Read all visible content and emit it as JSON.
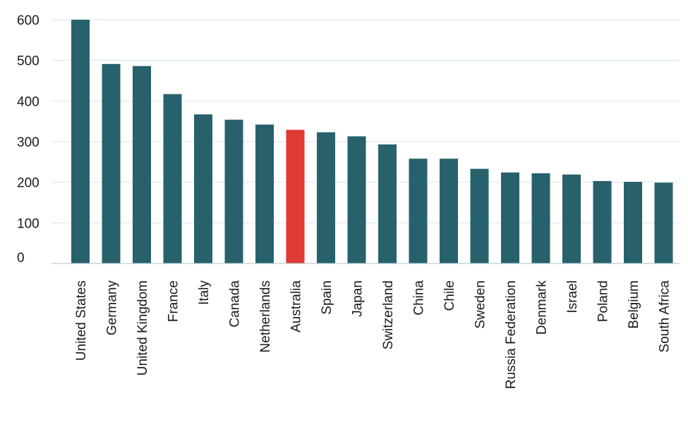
{
  "chart_data": {
    "type": "bar",
    "title": "",
    "xlabel": "",
    "ylabel": "",
    "ylim": [
      0,
      600
    ],
    "yticks": [
      "0",
      "100",
      "200",
      "300",
      "400",
      "500",
      "600"
    ],
    "grid": true,
    "categories": [
      "United States",
      "Germany",
      "United Kingdom",
      "France",
      "Italy",
      "Canada",
      "Netherlands",
      "Australia",
      "Spain",
      "Japan",
      "Switzerland",
      "China",
      "Chile",
      "Sweden",
      "Russia Federation",
      "Denmark",
      "Israel",
      "Poland",
      "Belgium",
      "South Africa"
    ],
    "values": [
      600,
      491,
      486,
      417,
      367,
      354,
      342,
      329,
      323,
      313,
      293,
      258,
      258,
      233,
      224,
      222,
      219,
      203,
      201,
      199
    ],
    "highlight_category": "Australia",
    "colors": {
      "bar": "#27616c",
      "highlight": "#e03a35"
    }
  }
}
